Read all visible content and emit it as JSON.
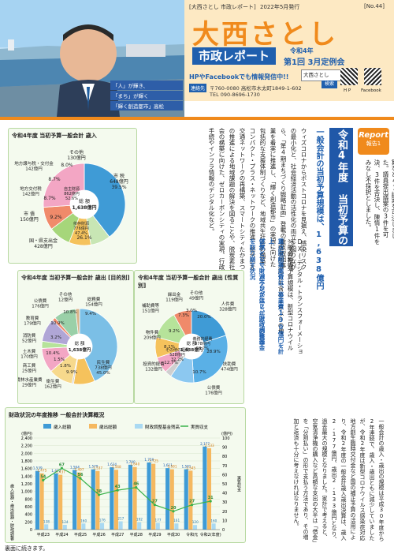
{
  "header": {
    "publisher": "[大西さとし 市政レポート]",
    "issued": "2022年5月発行",
    "issue_no": "[No.44]",
    "name": "大西さとし",
    "report_title": "市政レポート",
    "term_line1": "令和4年",
    "term_line2": "第1回 3月定例会",
    "sns_text": "HPやFacebookでも情報発信中!!",
    "contact_label": "連絡先",
    "address": "〒760-0080 高松市木太町1849-1-602",
    "tel": "TEL 090-8696-1730",
    "search_box": "大西さとし",
    "search_button": "検索",
    "qr_labels": [
      "H P",
      "Facebook"
    ],
    "slogan": [
      "「人」が輝き、",
      "「まち」が輝く",
      "「輝く創造都市」高松"
    ]
  },
  "report": {
    "badge_top": "Report",
    "badge_bottom": "報告1",
    "heading": "令和4年度 当初予算の特色",
    "intro": "3月4日から25日の日程で、令和4年度第1回定例会を開催し、令和4年度一般会計予算など41議案を可決しました。議員提出議案の3件を可決、3件を否決し、陳情1件をみなし不採択としました。",
    "point1_title": "一般会計の当初予算規模は、1,638億円",
    "point1_body": "ウィズコロナからポストコロナを見据え、感染リスクの最小化と、社会経済活動の活性化の両立を図りながら、「第4期まちづくり戦略計画」登載の重点取組事業を着実に推進し、「輝く創造都市」の実現に向けた包括的な支援体制づくりなど、地域共生社会の構築、コンパクト・プラス・ネットワークの推進、総合的な交通ネットワークの再構築、スマートシティたかまつの推進による地域課題の解決を図ることや、脱炭素社会の構築に向けた、ゼロカーボンシティの実現、行政手続やインフラ情報のデジタル化など。",
    "point2": "DX(デジタル・トランスフォーメーション)の推進。",
    "point3": "一般会計の予算規模は、新型コロナウイルス感染症対応分も含め2年ぶりの増。",
    "point4": "重点取組事業費は、事業費130億円を計上",
    "point5": "プライマリーバランスは2年ぶりの黒字",
    "point6": "依然として財源不足が生じ、財政調整基金を取り崩す状況"
  },
  "pie1": {
    "title": "令和4年度 当初予算一般会計 歳入",
    "center": [
      "総 額",
      "1,638億円"
    ],
    "labels": {
      "shi_zei": "市 税\n648億円\n39.5%",
      "sonota": "その他\n130億円",
      "chiho_kofu": "地方交付税\n142億円",
      "chiho_koufu": "地方譲与税・交付金\n142億円",
      "shisai": "市 債\n150億円",
      "kuni": "国・県支出金\n428億円",
      "jishu": "自主財源\n862億円\n52.6%",
      "izon": "依存財源\n776億円\n47.4%"
    },
    "pcts": [
      "8.0%",
      "8.7%",
      "8.7%",
      "9.2%",
      "26.1%"
    ]
  },
  "pie2": {
    "title": "令和4年度 当初予算一般会計 歳出 [目的別]",
    "center": [
      "総 額",
      "1,638億円"
    ],
    "labels": [
      "民生費\n738億円\n45.0%",
      "総務費\n154億円",
      "その他\n12億円",
      "公債費\n176億円",
      "教育費\n179億円",
      "消防費\n52億円",
      "土木費\n170億円",
      "商工費\n25億円",
      "衛生費\n162億円",
      "農林水産業費\n29億円"
    ],
    "pcts": [
      "9.4%",
      "10.8%",
      "10.9%",
      "3.2%",
      "10.4%",
      "1.5%",
      "1.8%",
      "9.9%"
    ]
  },
  "pie3": {
    "title": "令和4年度 当初予算一般会計 歳出 [性質別]",
    "center": [
      "総 額",
      "1,638億円"
    ],
    "labels": [
      "人件費\n328億円",
      "扶助費\n474億円",
      "公債費\n176億円",
      "補助費等\n151億円",
      "繰出金\n119億円",
      "その他\n49億円",
      "投資的経費\n132億円",
      "物件費\n209億円"
    ],
    "pcts": [
      "20.0%",
      "28.9%",
      "10.7%",
      "12.7%",
      "9.2%",
      "7.3%",
      "8.1%",
      "3.0%"
    ],
    "sub": [
      "義務的経費\n978億円\n59.7%",
      "その他の経費\n528億円\n32.2%"
    ]
  },
  "finance_chart": {
    "title": "財政状況の年度推移 一般会計決算概況",
    "legend": [
      "歳入総額",
      "歳出総額",
      "財政調整基金残高",
      "実質収支"
    ],
    "y_left_label": "歳入総額・歳出総額・財政調整基金残高",
    "y_left_unit": "(億円)",
    "y_right_unit": "(億円)",
    "y_right_label": "実質収支",
    "note": "裏面に続きます。"
  },
  "chart_data": [
    {
      "type": "pie",
      "title": "令和4年度 当初予算一般会計 歳入",
      "categories": [
        "市税",
        "その他",
        "地方交付税",
        "地方譲与税・交付金",
        "市債",
        "国・県支出金"
      ],
      "values": [
        648,
        130,
        142,
        142,
        150,
        428
      ]
    },
    {
      "type": "pie",
      "title": "令和4年度 当初予算一般会計 歳出 [目的別]",
      "categories": [
        "民生費",
        "総務費",
        "その他",
        "公債費",
        "教育費",
        "消防費",
        "土木費",
        "商工費",
        "衛生費",
        "農林水産業費"
      ],
      "values": [
        738,
        154,
        12,
        176,
        179,
        52,
        170,
        25,
        162,
        29
      ]
    },
    {
      "type": "pie",
      "title": "令和4年度 当初予算一般会計 歳出 [性質別]",
      "categories": [
        "人件費",
        "扶助費",
        "公債費",
        "その他",
        "繰出金",
        "補助費等",
        "物件費",
        "投資的経費"
      ],
      "values": [
        328,
        474,
        176,
        49,
        119,
        151,
        209,
        132
      ]
    },
    {
      "type": "bar",
      "title": "財政状況の年度推移 一般会計決算概況",
      "categories": [
        "平成23",
        "平成24",
        "平成25",
        "平成26",
        "平成27",
        "平成28",
        "平成29",
        "平成30",
        "令和元",
        "令和2(年度)"
      ],
      "series": [
        {
          "name": "歳入総額",
          "values": [
            1539,
            1472,
            1564,
            1579,
            1634,
            1700,
            1759,
            1611,
            1581,
            2177
          ]
        },
        {
          "name": "歳出総額",
          "values": [
            1475,
            1437,
            1497,
            1537,
            1568,
            1640,
            1725,
            1581,
            1545,
            2133
          ]
        },
        {
          "name": "財政調整基金残高",
          "values": [
            138,
            124,
            160,
            176,
            217,
            192,
            177,
            161,
            120,
            160
          ]
        },
        {
          "name": "実質収支",
          "values": [
            54,
            67,
            56,
            38,
            43,
            46,
            27,
            20,
            27,
            31
          ]
        }
      ],
      "ylim": [
        0,
        2400
      ],
      "y2lim": [
        0,
        100
      ],
      "y_ticks": [
        0,
        200,
        400,
        600,
        800,
        1000,
        1200,
        1400,
        1600,
        1800,
        2000,
        2200,
        2400
      ],
      "y2_ticks": [
        0,
        10,
        20,
        30,
        40,
        50,
        60,
        70,
        80,
        90,
        100
      ]
    }
  ],
  "finance_text": "一般会計の歳入・歳出の規模は平成30年度から2年連続で、歳入・歳出ともに減少していましたが、令和2年度は新型コロナウイルス感染症対応地方創生臨時交付金など国の補正予算の活用により、令和2年度の一般会計歳入歳出決算は、歳入2,177億円、歳出2,133億円となり、過去最大の規模となりました。家計で考えると、空気清浄機の購入など高額な支出の大半は「借金」を「分割払い」の形で支払う方法であり、その増加と返済も十分に考えなければなりません。"
}
